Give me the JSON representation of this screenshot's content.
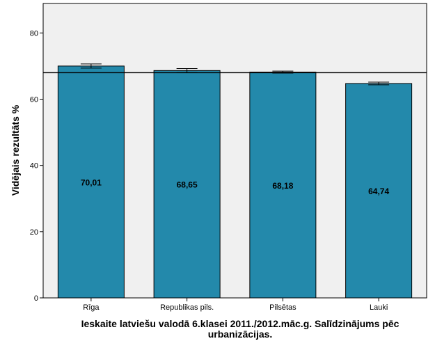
{
  "chart_data": {
    "type": "bar",
    "title": "Ieskaite latviešu valodā 6.klasei 2011./2012.māc.g. Salīdzinājums pēc urbanizācijas.",
    "title_lines": [
      "Ieskaite latviešu valodā 6.klasei 2011./2012.māc.g. Salīdzinājums pēc",
      "urbanizācijas."
    ],
    "xlabel": "",
    "ylabel": "Vidējais rezultāts %",
    "categories": [
      "Rīga",
      "Republikas pils.",
      "Pilsētas",
      "Lauki"
    ],
    "values": [
      70.01,
      68.65,
      68.18,
      64.74
    ],
    "data_labels": [
      "70,01",
      "68,65",
      "68,18",
      "64,74"
    ],
    "error_bars": [
      0.63,
      0.6,
      0.3,
      0.4
    ],
    "reference_line": 68.0,
    "ylim": [
      0,
      88.9
    ],
    "yticks": [
      0,
      20,
      40,
      60,
      80
    ],
    "grid": false,
    "colors": {
      "bar": "#2389ab",
      "plot_background": "#f0f0f0",
      "outline": "#000000"
    }
  }
}
